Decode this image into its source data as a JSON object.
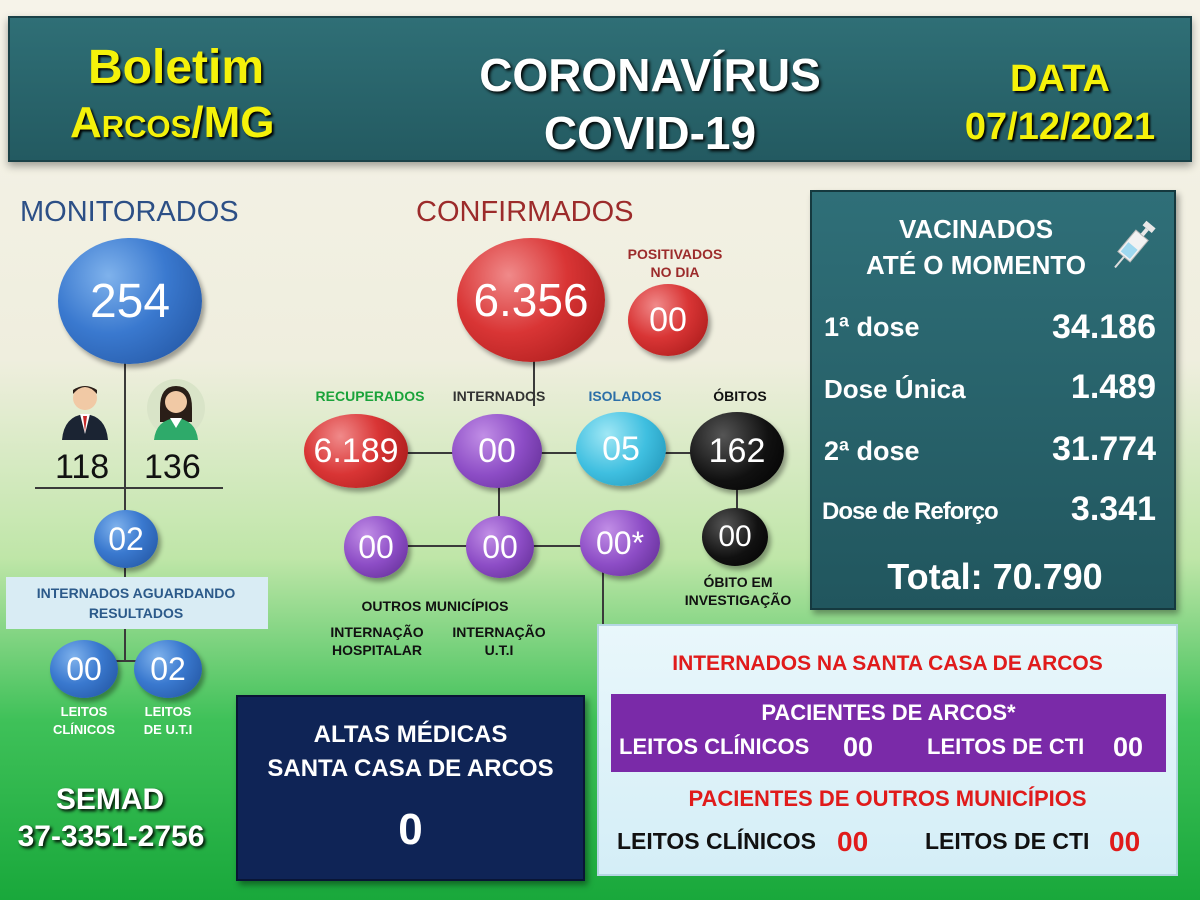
{
  "header": {
    "boletim": "Boletim",
    "city": "Arcos/MG",
    "title_line1": "CORONAVÍRUS",
    "title_line2": "COVID-19",
    "data_label": "DATA",
    "date": "07/12/2021"
  },
  "monitorados": {
    "title": "MONITORADOS",
    "total": "254",
    "male": "118",
    "female": "136",
    "internados_aguardando": "02",
    "internados_label": "INTERNADOS AGUARDANDO RESULTADOS",
    "leitos_clinicos": "00",
    "leitos_uti": "02",
    "leitos_clinicos_label_1": "LEITOS",
    "leitos_clinicos_label_2": "CLÍNICOS",
    "leitos_uti_label_1": "LEITOS",
    "leitos_uti_label_2": "DE  U.T.I"
  },
  "semad": {
    "name": "SEMAD",
    "phone": "37-3351-2756"
  },
  "confirmados": {
    "title": "CONFIRMADOS",
    "total": "6.356",
    "positivados_label_1": "POSITIVADOS",
    "positivados_label_2": "NO DIA",
    "positivados": "00",
    "recuperados_label": "RECUPERADOS",
    "recuperados": "6.189",
    "internados_label": "INTERNADOS",
    "internados": "00",
    "isolados_label": "ISOLADOS",
    "isolados": "05",
    "obitos_label": "ÓBITOS",
    "obitos": "162",
    "obito_investigacao": "00",
    "obito_investigacao_label_1": "ÓBITO EM",
    "obito_investigacao_label_2": "INVESTIGAÇÃO",
    "internacao_hospitalar": "00",
    "internacao_uti": "00",
    "outros_municipios": "00*",
    "outros_municipios_label": "OUTROS MUNICÍPIOS",
    "internacao_hospitalar_label_1": "INTERNAÇÃO",
    "internacao_hospitalar_label_2": "HOSPITALAR",
    "internacao_uti_label_1": "INTERNAÇÃO",
    "internacao_uti_label_2": "U.T.I"
  },
  "vacinados": {
    "title_1": "VACINADOS",
    "title_2": "ATÉ O MOMENTO",
    "rows": [
      {
        "label": "1ª dose",
        "value": "34.186"
      },
      {
        "label": "Dose Única",
        "value": "1.489"
      },
      {
        "label": "2ª dose",
        "value": "31.774"
      },
      {
        "label": "Dose de Reforço",
        "value": "3.341"
      }
    ],
    "total": "Total: 70.790"
  },
  "altas": {
    "title_1": "ALTAS MÉDICAS",
    "title_2": "SANTA CASA DE ARCOS",
    "value": "0"
  },
  "santa_casa": {
    "title": "INTERNADOS NA SANTA CASA DE ARCOS",
    "arcos_title": "PACIENTES DE ARCOS*",
    "arcos_clinicos_label": "LEITOS CLÍNICOS",
    "arcos_clinicos": "00",
    "arcos_cti_label": "LEITOS DE CTI",
    "arcos_cti": "00",
    "outros_title": "PACIENTES DE OUTROS MUNICÍPIOS",
    "outros_clinicos_label": "LEITOS CLÍNICOS",
    "outros_clinicos": "00",
    "outros_cti_label": "LEITOS DE CTI",
    "outros_cti": "00"
  },
  "colors": {
    "header_bg": "#2f6f76",
    "yellow": "#f5f20a",
    "confirmados_red": "#d93535",
    "monitorados_blue": "#3a79cf",
    "recuperados_green": "#1aa33a",
    "vacinados_bg": "#2f6f78",
    "altas_bg": "#0f2456",
    "santa_purple": "#7a2aa8"
  }
}
